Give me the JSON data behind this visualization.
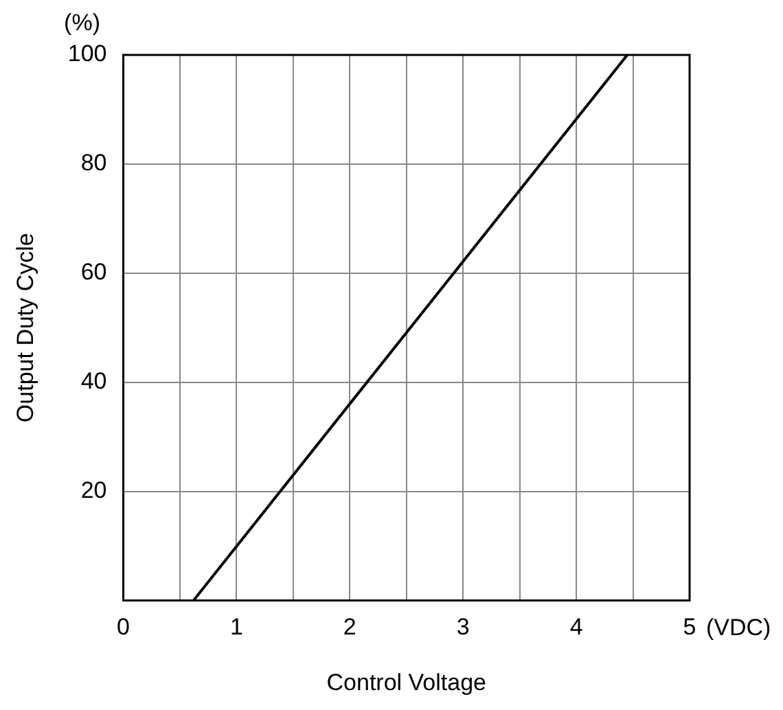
{
  "chart_data": {
    "type": "line",
    "xlabel": "Control Voltage",
    "ylabel": "Output Duty Cycle",
    "annotations": [
      "(%)",
      "(VDC)"
    ],
    "series": [
      {
        "x": [
          0.62,
          4.45
        ],
        "values": [
          0,
          100
        ],
        "color": "#000000"
      }
    ],
    "xlim": [
      0,
      5
    ],
    "ylim": [
      0,
      100
    ],
    "xticks": [
      0,
      {
        "value": 0.5,
        "label": null
      },
      1,
      {
        "value": 1.5,
        "label": null
      },
      2,
      {
        "value": 2.5,
        "label": null
      },
      3,
      {
        "value": 3.5,
        "label": null
      },
      4,
      {
        "value": 4.5,
        "label": null
      },
      5
    ],
    "yticks": [
      {
        "value": 0,
        "label": null
      },
      20,
      40,
      60,
      80,
      100
    ],
    "grid": true,
    "legend": false,
    "marker": "none",
    "line_style": "solid"
  }
}
